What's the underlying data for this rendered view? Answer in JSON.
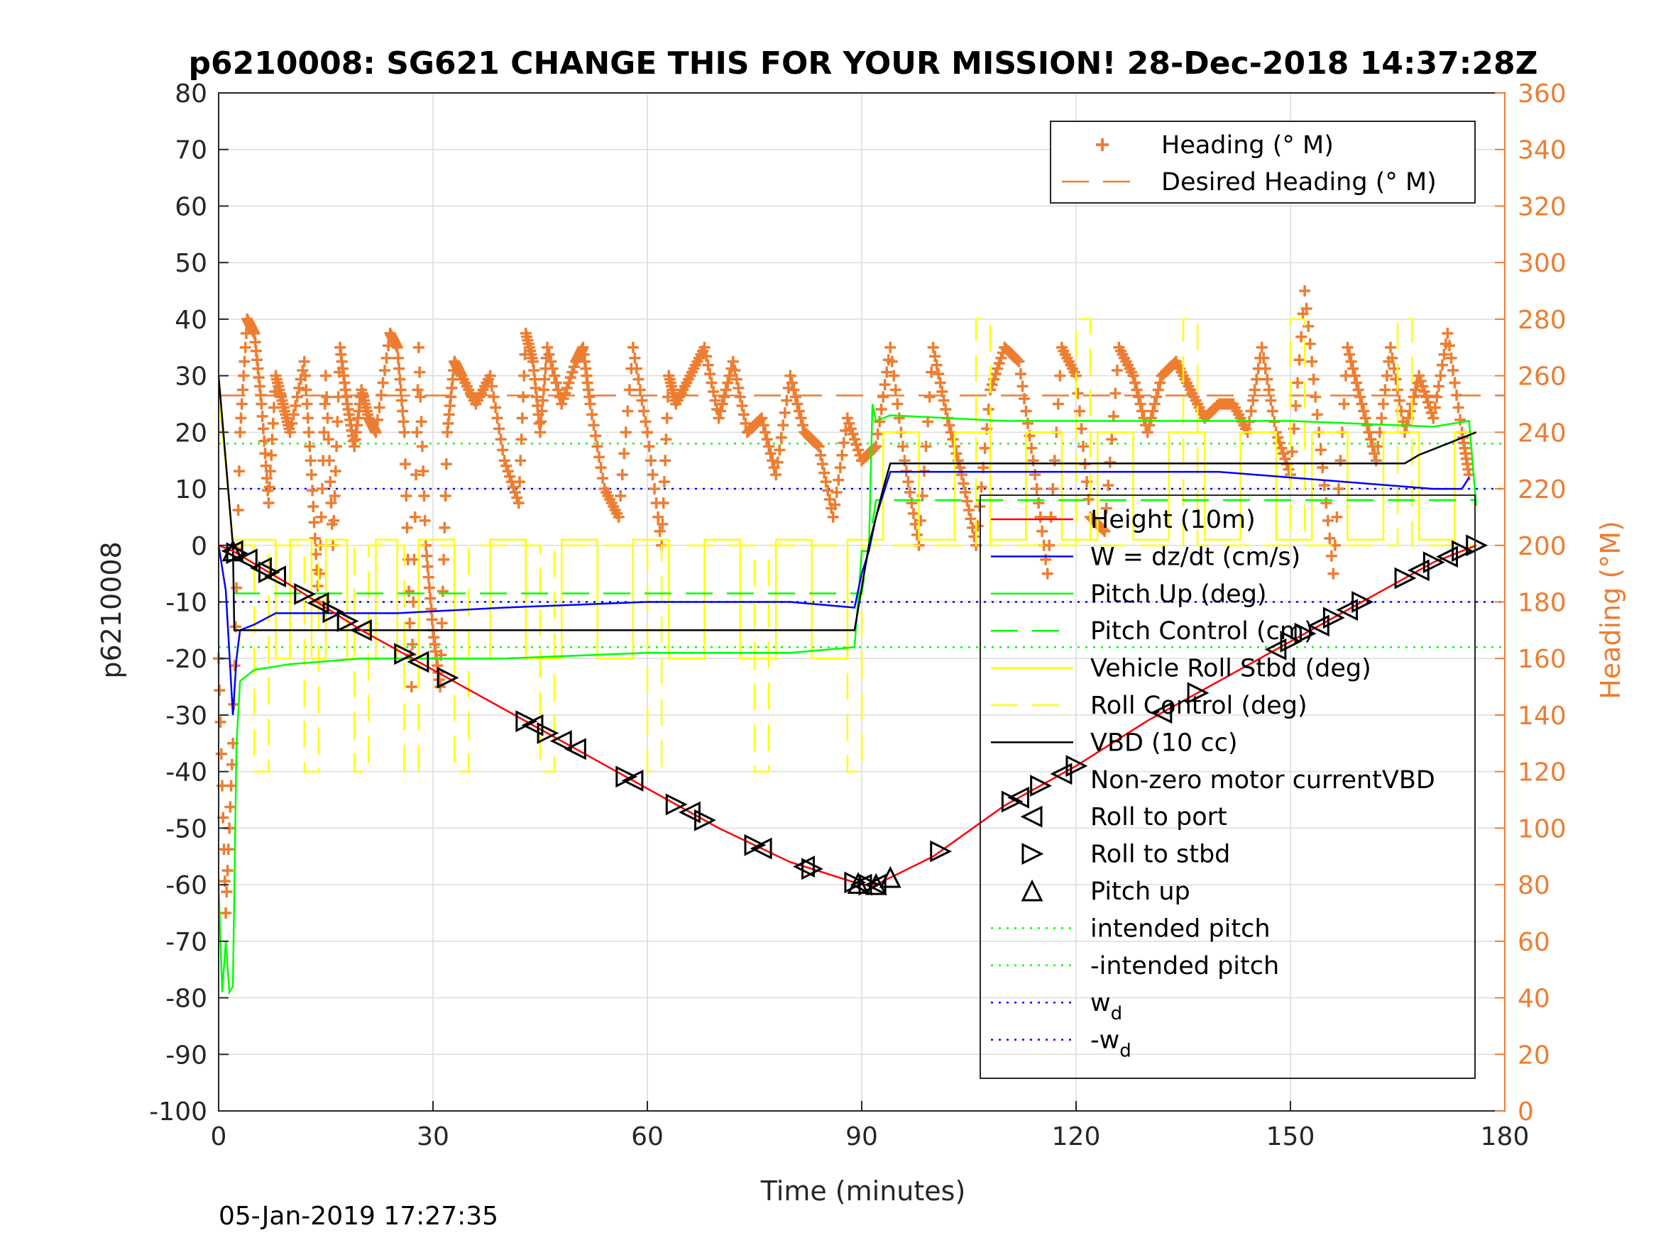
{
  "chart_data": {
    "type": "line",
    "title": "p6210008: SG621 CHANGE THIS FOR YOUR MISSION! 28-Dec-2018 14:37:28Z",
    "xlabel": "Time (minutes)",
    "ylabel": "p6210008",
    "ylabel_right": "Heading (°M)",
    "xlim": [
      0,
      180
    ],
    "ylim": [
      -100,
      80
    ],
    "ylim_right": [
      0,
      360
    ],
    "xticks": [
      "0",
      "30",
      "60",
      "90",
      "120",
      "150",
      "180"
    ],
    "yticks": [
      "80",
      "70",
      "60",
      "50",
      "40",
      "30",
      "20",
      "10",
      "0",
      "-10",
      "-20",
      "-30",
      "-40",
      "-50",
      "-60",
      "-70",
      "-80",
      "-90",
      "-100"
    ],
    "yticks_right": [
      "360",
      "340",
      "320",
      "300",
      "280",
      "260",
      "240",
      "220",
      "200",
      "180",
      "160",
      "140",
      "120",
      "100",
      "80",
      "60",
      "40",
      "20",
      "0"
    ],
    "grid": true,
    "footer_timestamp": "05-Jan-2019 17:27:35",
    "legend_top": [
      {
        "label": "Heading (° M)",
        "color": "#ed7d31",
        "style": "plus"
      },
      {
        "label": "Desired Heading (° M)",
        "color": "#ed7d31",
        "style": "dash"
      }
    ],
    "legend_main": [
      {
        "label": "Height (10m)",
        "color": "#ff0000",
        "style": "solid"
      },
      {
        "label": "W = dz/dt (cm/s)",
        "color": "#0000ff",
        "style": "solid"
      },
      {
        "label": "Pitch Up (deg)",
        "color": "#00ff00",
        "style": "solid"
      },
      {
        "label": "Pitch Control (cm)",
        "color": "#00ff00",
        "style": "dash"
      },
      {
        "label": "Vehicle Roll Stbd (deg)",
        "color": "#ffff00",
        "style": "solid"
      },
      {
        "label": "Roll Control (deg)",
        "color": "#ffff00",
        "style": "dash"
      },
      {
        "label": "VBD (10 cc)",
        "color": "#000000",
        "style": "solid"
      },
      {
        "label": "Non-zero motor currentVBD",
        "color": "#000000",
        "style": "none"
      },
      {
        "label": "Roll to port",
        "color": "#000000",
        "style": "tri-left"
      },
      {
        "label": "Roll to stbd",
        "color": "#000000",
        "style": "tri-right"
      },
      {
        "label": "Pitch up",
        "color": "#000000",
        "style": "tri-up"
      },
      {
        "label": "intended pitch",
        "color": "#00ff00",
        "style": "dot"
      },
      {
        "label": "-intended pitch",
        "color": "#00ff00",
        "style": "dot"
      },
      {
        "label": "w",
        "sub": "d",
        "color": "#0000ff",
        "style": "dot"
      },
      {
        "label": "-w",
        "sub": "d",
        "color": "#0000ff",
        "style": "dot"
      }
    ],
    "series": [
      {
        "name": "Height (10m)",
        "color": "#ff0000",
        "style": "solid",
        "x": [
          0,
          2,
          10,
          20,
          30,
          40,
          50,
          60,
          70,
          80,
          90,
          92,
          100,
          110,
          120,
          130,
          140,
          150,
          160,
          170,
          176
        ],
        "values": [
          0,
          -1,
          -7,
          -15,
          -22,
          -29,
          -36,
          -43,
          -50,
          -56,
          -60,
          -60,
          -55,
          -46,
          -39,
          -31,
          -24,
          -17,
          -10,
          -3,
          0
        ]
      },
      {
        "name": "W = dz/dt (cm/s)",
        "color": "#0000ff",
        "style": "solid",
        "x": [
          0,
          1,
          2,
          2.5,
          3,
          5,
          8,
          15,
          25,
          40,
          60,
          80,
          89,
          90,
          91,
          92,
          94,
          110,
          125,
          140,
          150,
          160,
          170,
          174,
          175
        ],
        "values": [
          0,
          -8,
          -30,
          -20,
          -15,
          -14,
          -12,
          -12,
          -12,
          -11,
          -10,
          -10,
          -11,
          -5,
          -1,
          5,
          13,
          13,
          13,
          13,
          12,
          11,
          10,
          10,
          12
        ]
      },
      {
        "name": "Pitch Up (deg)",
        "color": "#00ff00",
        "style": "solid",
        "x": [
          0,
          0.5,
          1,
          1.5,
          2,
          2.5,
          3,
          5,
          10,
          20,
          40,
          60,
          80,
          89,
          90,
          91,
          91.5,
          92,
          94,
          110,
          130,
          150,
          170,
          175,
          176
        ],
        "values": [
          -60,
          -79,
          -70,
          -79,
          -78,
          -35,
          -24,
          -22,
          -21,
          -20,
          -20,
          -19,
          -19,
          -18,
          -1,
          -1,
          25,
          22,
          23,
          22,
          22,
          22,
          21,
          22,
          7
        ]
      },
      {
        "name": "Pitch Control (cm)",
        "color": "#00ff00",
        "style": "dash",
        "x": [
          2,
          90,
          92,
          176
        ],
        "values": [
          -8.5,
          -8.5,
          8,
          8
        ]
      },
      {
        "name": "Vehicle Roll Stbd (deg)",
        "color": "#ffff00",
        "style": "solid",
        "x": [
          0,
          2,
          4,
          8,
          8,
          10,
          10,
          13,
          13,
          15,
          15,
          18,
          18,
          22,
          22,
          25,
          25,
          28,
          28,
          33,
          33,
          38,
          38,
          43,
          43,
          48,
          48,
          53,
          53,
          58,
          58,
          63,
          63,
          68,
          68,
          73,
          73,
          78,
          78,
          83,
          83,
          88,
          88,
          93,
          93,
          98,
          98,
          103,
          103,
          108,
          108,
          113,
          113,
          118,
          118,
          123,
          123,
          128,
          128,
          133,
          133,
          138,
          138,
          143,
          143,
          148,
          148,
          153,
          153,
          158,
          158,
          163,
          163,
          168,
          168,
          173,
          173,
          176
        ],
        "values": [
          27,
          1,
          1,
          1,
          -20,
          -20,
          1,
          1,
          -20,
          -20,
          1,
          1,
          -20,
          -20,
          1,
          1,
          -20,
          -20,
          1,
          1,
          -20,
          -20,
          1,
          1,
          -20,
          -20,
          1,
          1,
          -20,
          -20,
          1,
          1,
          -20,
          -20,
          1,
          1,
          -20,
          -20,
          1,
          1,
          -20,
          -20,
          1,
          1,
          20,
          20,
          1,
          1,
          20,
          20,
          1,
          1,
          20,
          20,
          1,
          1,
          20,
          20,
          1,
          1,
          20,
          20,
          1,
          1,
          20,
          20,
          1,
          1,
          20,
          20,
          1,
          1,
          20,
          20,
          1,
          1,
          20,
          20
        ]
      },
      {
        "name": "Roll Control (deg)",
        "color": "#ffff00",
        "style": "dash",
        "x": [
          2,
          5,
          5,
          7,
          7,
          12,
          12,
          14,
          14,
          19,
          19,
          21,
          21,
          26,
          26,
          28,
          28,
          33,
          33,
          35,
          35,
          45,
          45,
          47,
          47,
          60,
          60,
          62,
          62,
          75,
          75,
          77,
          77,
          88,
          88,
          90,
          90,
          106,
          106,
          108,
          108,
          120,
          120,
          122,
          122,
          135,
          135,
          137,
          137,
          150,
          150,
          152,
          152,
          165,
          165,
          167,
          167,
          176
        ],
        "values": [
          0,
          0,
          -40,
          -40,
          0,
          0,
          -40,
          -40,
          0,
          0,
          -40,
          -40,
          0,
          0,
          -40,
          -40,
          0,
          0,
          -40,
          -40,
          0,
          0,
          -40,
          -40,
          0,
          0,
          -40,
          -40,
          0,
          0,
          -40,
          -40,
          0,
          0,
          -40,
          -40,
          0,
          0,
          40,
          40,
          0,
          0,
          40,
          40,
          0,
          0,
          40,
          40,
          0,
          0,
          40,
          40,
          0,
          0,
          40,
          40,
          0,
          0
        ]
      },
      {
        "name": "VBD (10 cc)",
        "color": "#000000",
        "style": "solid",
        "x": [
          0,
          2,
          2.2,
          89,
          91,
          93,
          94,
          166,
          168,
          170,
          172,
          174,
          176
        ],
        "values": [
          30,
          0,
          -15,
          -15,
          0,
          10,
          14.5,
          14.5,
          16,
          17,
          18,
          19,
          20
        ]
      }
    ],
    "reference_lines": [
      {
        "name": "intended pitch",
        "color": "#00ff00",
        "value": 18
      },
      {
        "name": "-intended pitch",
        "color": "#00ff00",
        "value": -18
      },
      {
        "name": "w_d",
        "color": "#0000ff",
        "value": 10
      },
      {
        "name": "-w_d",
        "color": "#0000ff",
        "value": -10
      },
      {
        "name": "Desired Heading (° M)",
        "color": "#ed7d31",
        "value_right": 253
      }
    ],
    "heading_series": {
      "name": "Heading (° M)",
      "color": "#ed7d31",
      "x": [
        0,
        1,
        2,
        3,
        4,
        5,
        6,
        7,
        8,
        9,
        10,
        12,
        13,
        14,
        15,
        16,
        17,
        18,
        19,
        20,
        21,
        22,
        24,
        25,
        26,
        27,
        28,
        29,
        30,
        31,
        32,
        33,
        34,
        36,
        38,
        40,
        42,
        43,
        44,
        45,
        46,
        48,
        50,
        51,
        52,
        54,
        56,
        58,
        60,
        62,
        63,
        64,
        66,
        68,
        70,
        72,
        74,
        76,
        78,
        80,
        82,
        84,
        86,
        88,
        90,
        92,
        94,
        96,
        98,
        100,
        102,
        104,
        106,
        108,
        110,
        112,
        114,
        116,
        118,
        120,
        122,
        124,
        126,
        128,
        130,
        132,
        134,
        136,
        138,
        140,
        142,
        144,
        146,
        148,
        150,
        152,
        154,
        156,
        158,
        160,
        162,
        164,
        166,
        168,
        170,
        172,
        174,
        175
      ],
      "values": [
        160,
        70,
        130,
        240,
        280,
        275,
        250,
        215,
        260,
        250,
        240,
        265,
        225,
        180,
        260,
        200,
        270,
        250,
        235,
        255,
        245,
        240,
        275,
        270,
        240,
        150,
        270,
        200,
        170,
        150,
        240,
        265,
        260,
        250,
        260,
        230,
        215,
        275,
        265,
        240,
        270,
        250,
        265,
        270,
        250,
        220,
        210,
        270,
        240,
        200,
        260,
        250,
        260,
        270,
        245,
        265,
        240,
        245,
        225,
        260,
        240,
        235,
        210,
        245,
        230,
        235,
        270,
        230,
        200,
        270,
        245,
        225,
        200,
        255,
        270,
        265,
        230,
        190,
        270,
        260,
        210,
        205,
        270,
        260,
        240,
        260,
        265,
        255,
        245,
        250,
        250,
        240,
        270,
        240,
        225,
        290,
        240,
        190,
        270,
        250,
        230,
        270,
        240,
        260,
        245,
        275,
        240,
        225
      ]
    },
    "markers": {
      "roll_to_port_x": [
        2,
        4,
        6,
        8,
        14,
        20,
        28,
        44,
        48,
        50,
        58,
        66,
        76,
        82,
        90,
        92,
        112,
        118,
        132,
        148,
        154,
        158,
        168,
        172
      ],
      "roll_to_stbd_x": [
        2.5,
        7,
        12,
        16,
        18,
        26,
        32,
        43,
        46,
        57,
        64,
        68,
        75,
        83,
        89,
        91,
        101,
        111,
        115,
        120,
        137,
        150,
        152,
        156,
        160,
        166,
        170,
        174,
        176
      ],
      "pitch_up_x": [
        2,
        89.5,
        92,
        94
      ]
    }
  }
}
